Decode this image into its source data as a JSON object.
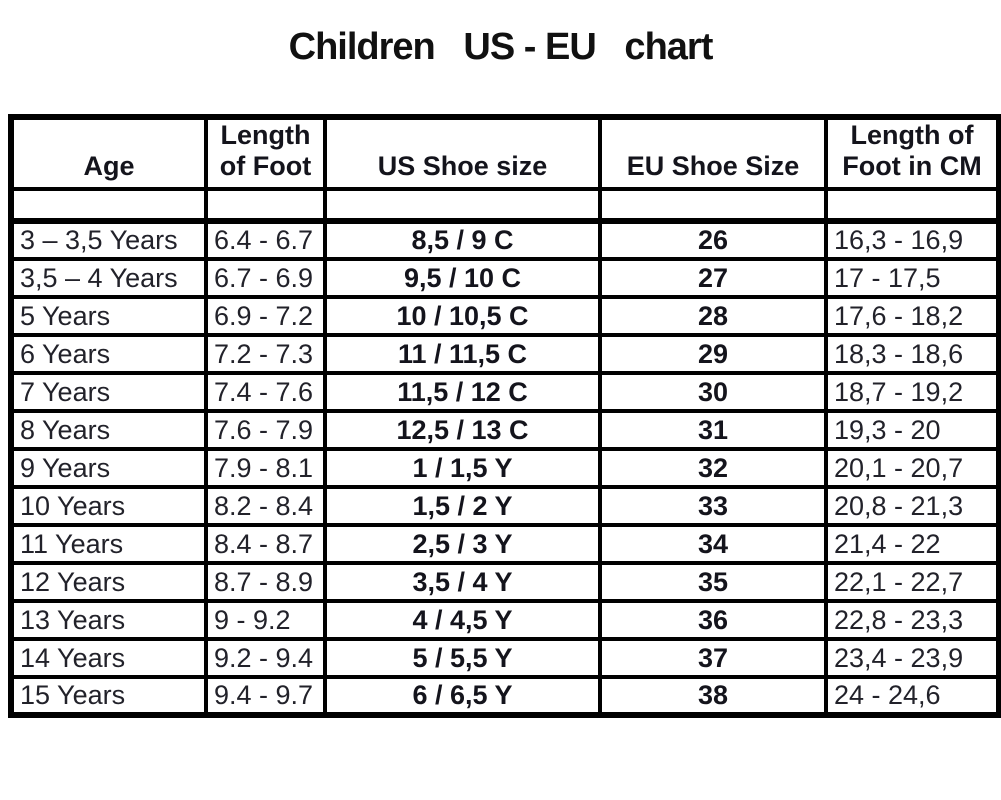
{
  "page": {
    "title": "Children   US - EU   chart"
  },
  "chart_data": {
    "type": "table",
    "title": "Children   US - EU   chart",
    "columns": [
      "Age",
      "Length\nof Foot",
      "US Shoe size",
      "EU Shoe Size",
      "Length of\nFoot in CM"
    ],
    "rows": [
      [
        "3 – 3,5 Years",
        "6.4 - 6.7",
        "8,5 / 9 C",
        "26",
        "16,3 - 16,9"
      ],
      [
        "3,5 – 4 Years",
        "6.7 - 6.9",
        "9,5 / 10 C",
        "27",
        "17 - 17,5"
      ],
      [
        "5 Years",
        "6.9 - 7.2",
        "10 / 10,5 C",
        "28",
        "17,6 - 18,2"
      ],
      [
        "6 Years",
        "7.2 - 7.3",
        "11 / 11,5 C",
        "29",
        "18,3 - 18,6"
      ],
      [
        "7 Years",
        "7.4 - 7.6",
        "11,5 / 12 C",
        "30",
        "18,7 - 19,2"
      ],
      [
        "8 Years",
        "7.6 - 7.9",
        "12,5 / 13 C",
        "31",
        "19,3 - 20"
      ],
      [
        "9 Years",
        "7.9 - 8.1",
        "1 / 1,5 Y",
        "32",
        "20,1 - 20,7"
      ],
      [
        "10 Years",
        "8.2 - 8.4",
        "1,5 / 2 Y",
        "33",
        "20,8 - 21,3"
      ],
      [
        "11 Years",
        "8.4 - 8.7",
        "2,5 / 3 Y",
        "34",
        "21,4 - 22"
      ],
      [
        "12 Years",
        "8.7 - 8.9",
        "3,5 / 4 Y",
        "35",
        "22,1 - 22,7"
      ],
      [
        "13 Years",
        "9 - 9.2",
        "4 / 4,5 Y",
        "36",
        "22,8 - 23,3"
      ],
      [
        "14 Years",
        "9.2 - 9.4",
        "5 / 5,5 Y",
        "37",
        "23,4 - 23,9"
      ],
      [
        "15 Years",
        "9.4 - 9.7",
        "6 / 6,5 Y",
        "38",
        "24 - 24,6"
      ]
    ]
  }
}
